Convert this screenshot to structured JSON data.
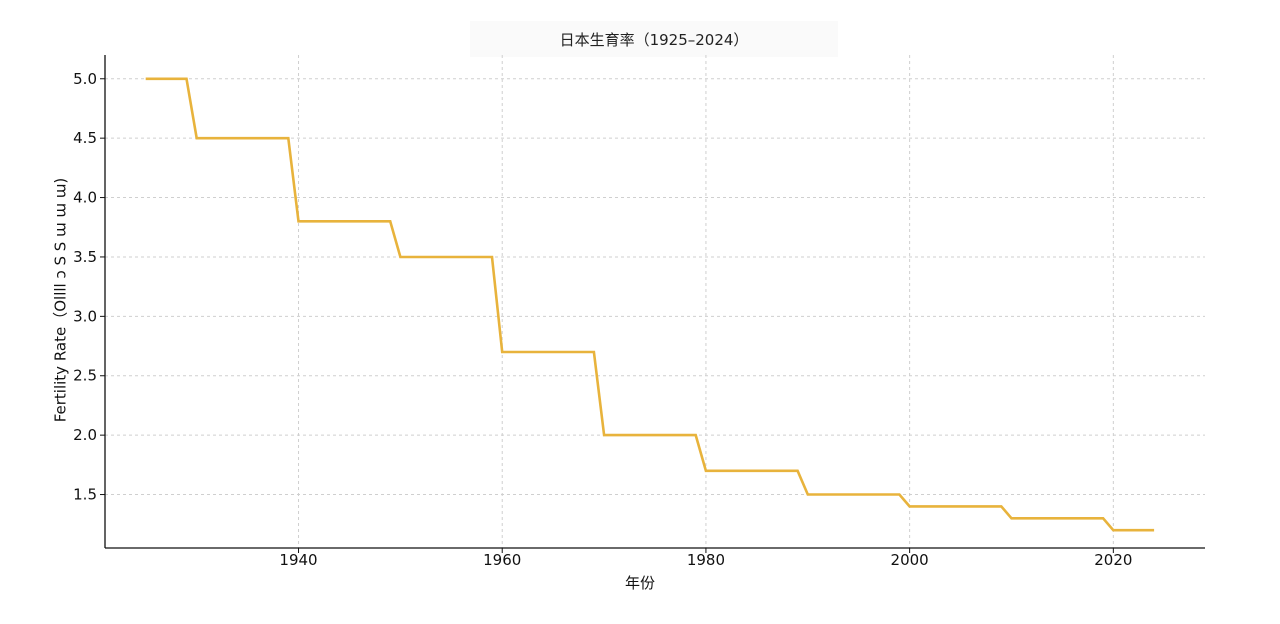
{
  "chart_data": {
    "type": "line",
    "title": "日本生育率（1925–2024）",
    "xlabel": "年份",
    "ylabel": "Fertility Rate（Ollll ɔ S S ɯ ɯ ɯ)",
    "xlim": [
      1921,
      2029
    ],
    "ylim": [
      1.05,
      5.2
    ],
    "xticks": [
      1940,
      1960,
      1980,
      2000,
      2020
    ],
    "yticks": [
      1.5,
      2.0,
      2.5,
      3.0,
      3.5,
      4.0,
      4.5,
      5.0
    ],
    "grid": true,
    "line_color": "#E8B33C",
    "series": [
      {
        "x": [
          1925,
          1929,
          1930,
          1939,
          1940,
          1949,
          1950,
          1959,
          1960,
          1969,
          1970,
          1979,
          1980,
          1989,
          1990,
          1999,
          2000,
          2009,
          2010,
          2019,
          2020,
          2024
        ],
        "y": [
          5.0,
          5.0,
          4.5,
          4.5,
          3.8,
          3.8,
          3.5,
          3.5,
          2.7,
          2.7,
          2.0,
          2.0,
          1.7,
          1.7,
          1.5,
          1.5,
          1.4,
          1.4,
          1.3,
          1.3,
          1.2,
          1.2
        ]
      }
    ]
  }
}
